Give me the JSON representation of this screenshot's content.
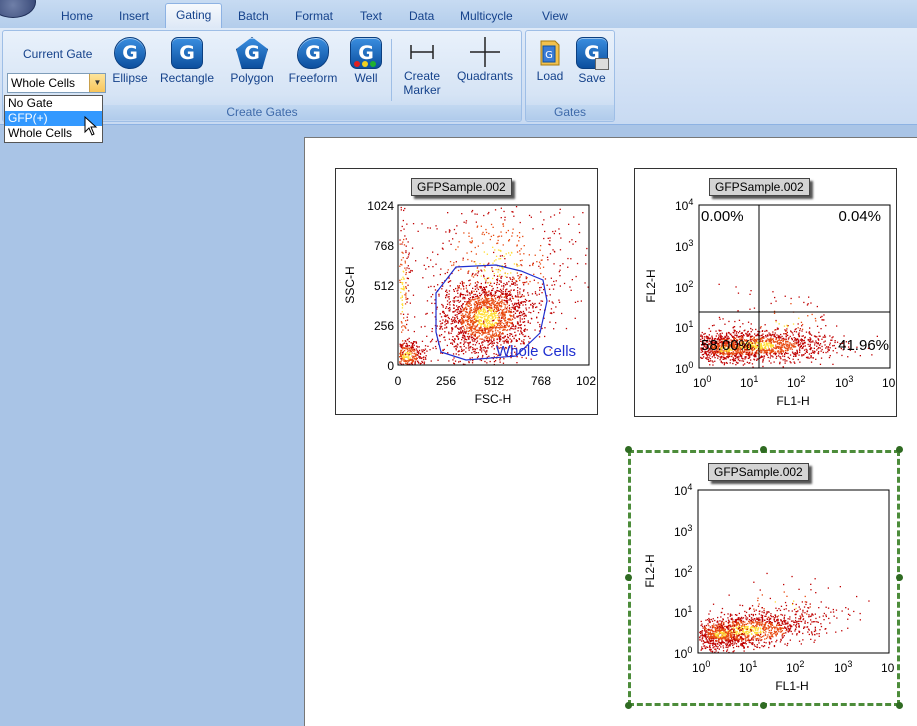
{
  "tabs": [
    {
      "label": "Home"
    },
    {
      "label": "Insert"
    },
    {
      "label": "Gating"
    },
    {
      "label": "Batch"
    },
    {
      "label": "Format"
    },
    {
      "label": "Text"
    },
    {
      "label": "Data"
    },
    {
      "label": "Multicycle"
    },
    {
      "label": "View"
    }
  ],
  "active_tab": "Gating",
  "ribbon": {
    "current_gate_label": "Current Gate",
    "current_gate_value": "Whole Cells",
    "dropdown_options": [
      "No Gate",
      "GFP(+)",
      "Whole Cells"
    ],
    "dropdown_highlighted": "GFP(+)",
    "create_gates": {
      "label": "Create Gates",
      "buttons": [
        {
          "label": "Ellipse"
        },
        {
          "label": "Rectangle"
        },
        {
          "label": "Polygon"
        },
        {
          "label": "Freeform"
        },
        {
          "label": "Well"
        },
        {
          "label": "Create\nMarker"
        },
        {
          "label": "Quadrants"
        }
      ]
    },
    "gates": {
      "label": "Gates",
      "buttons": [
        {
          "label": "Load"
        },
        {
          "label": "Save"
        }
      ]
    }
  },
  "plots": [
    {
      "title": "GFPSample.002",
      "xlabel": "FSC-H",
      "ylabel": "SSC-H",
      "xticks": [
        "0",
        "256",
        "512",
        "768",
        "102"
      ],
      "yticks": [
        "0",
        "256",
        "512",
        "768",
        "1024"
      ],
      "gate_label": "Whole Cells"
    },
    {
      "title": "GFPSample.002",
      "xlabel": "FL1-H",
      "ylabel": "FL2-H",
      "xticks": [
        "10",
        "10",
        "10",
        "10",
        "10"
      ],
      "xexp": [
        "0",
        "1",
        "2",
        "3",
        ""
      ],
      "yticks": [
        "10",
        "10",
        "10",
        "10",
        "10"
      ],
      "yexp": [
        "0",
        "1",
        "2",
        "3",
        "4"
      ],
      "quadrants": {
        "ul": "0.00%",
        "ur": "0.04%",
        "ll": "58.00%",
        "lr": "41.96%"
      }
    },
    {
      "title": "GFPSample.002",
      "xlabel": "FL1-H",
      "ylabel": "FL2-H",
      "xticks": [
        "10",
        "10",
        "10",
        "10",
        "10"
      ],
      "xexp": [
        "0",
        "1",
        "2",
        "3",
        ""
      ],
      "yticks": [
        "10",
        "10",
        "10",
        "10",
        "10"
      ],
      "yexp": [
        "0",
        "1",
        "2",
        "3",
        "4"
      ]
    }
  ],
  "colors": {
    "dense": "#ffdd33",
    "mid": "#e84a10",
    "sparse": "#c00000",
    "gate": "#1f2fd0",
    "selection": "#4c8c3a"
  }
}
